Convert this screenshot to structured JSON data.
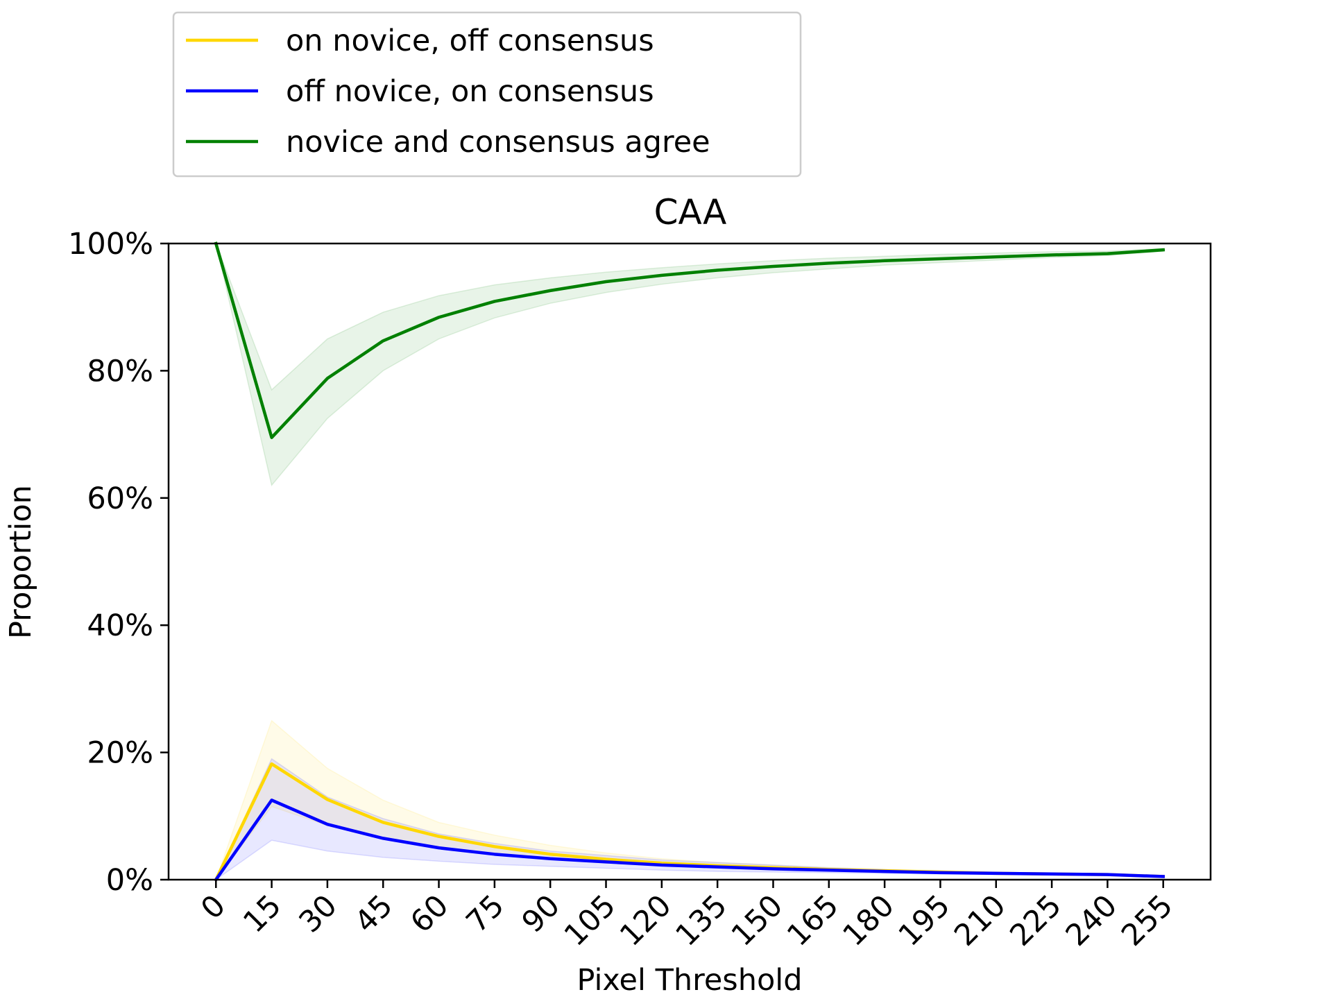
{
  "chart_data": {
    "type": "line",
    "title": "CAA",
    "xlabel": "Pixel Threshold",
    "ylabel": "Proportion",
    "x": [
      0,
      15,
      30,
      45,
      60,
      75,
      90,
      105,
      120,
      135,
      150,
      165,
      180,
      195,
      210,
      225,
      240,
      255
    ],
    "xlim": [
      -12.75,
      267.75
    ],
    "ylim": [
      0,
      100
    ],
    "ytick_values": [
      0,
      20,
      40,
      60,
      80,
      100
    ],
    "ytick_labels": [
      "0%",
      "20%",
      "40%",
      "60%",
      "80%",
      "100%"
    ],
    "xtick_labels": [
      "0",
      "15",
      "30",
      "45",
      "60",
      "75",
      "90",
      "105",
      "120",
      "135",
      "150",
      "165",
      "180",
      "195",
      "210",
      "225",
      "240",
      "255"
    ],
    "legend_position": "above-left",
    "grid": false,
    "series": [
      {
        "name": "on novice, off consensus",
        "color": "#FFD700",
        "values": [
          0,
          18.2,
          12.6,
          9.0,
          6.8,
          5.2,
          4.0,
          3.2,
          2.6,
          2.2,
          1.9,
          1.6,
          1.4,
          1.2,
          1.0,
          0.9,
          0.8,
          0.5
        ],
        "band_low": [
          0,
          11.5,
          8.5,
          6.5,
          5.0,
          4.0,
          3.2,
          2.6,
          2.2,
          1.9,
          1.6,
          1.4,
          1.2,
          1.0,
          0.9,
          0.8,
          0.7,
          0.4
        ],
        "band_high": [
          0,
          25.0,
          17.5,
          12.5,
          9.0,
          7.0,
          5.4,
          4.2,
          3.3,
          2.7,
          2.3,
          1.9,
          1.6,
          1.4,
          1.2,
          1.0,
          0.9,
          0.6
        ]
      },
      {
        "name": "off novice, on consensus",
        "color": "#0000FF",
        "values": [
          0,
          12.5,
          8.7,
          6.5,
          5.0,
          4.0,
          3.3,
          2.8,
          2.3,
          2.0,
          1.7,
          1.5,
          1.3,
          1.1,
          1.0,
          0.9,
          0.8,
          0.5
        ],
        "band_low": [
          0,
          6.2,
          4.5,
          3.5,
          2.9,
          2.4,
          2.1,
          1.8,
          1.5,
          1.3,
          1.2,
          1.1,
          1.0,
          0.9,
          0.8,
          0.7,
          0.6,
          0.4
        ],
        "band_high": [
          0,
          19.0,
          13.0,
          9.6,
          7.2,
          5.7,
          4.5,
          3.8,
          3.1,
          2.7,
          2.3,
          1.9,
          1.6,
          1.3,
          1.2,
          1.0,
          0.9,
          0.6
        ]
      },
      {
        "name": "novice and consensus agree",
        "color": "#008000",
        "values": [
          100,
          69.5,
          78.8,
          84.7,
          88.4,
          90.9,
          92.6,
          94.0,
          95.0,
          95.8,
          96.4,
          96.9,
          97.3,
          97.6,
          97.9,
          98.2,
          98.4,
          99.0
        ],
        "band_low": [
          100,
          62.0,
          72.5,
          80.0,
          85.0,
          88.3,
          90.6,
          92.3,
          93.6,
          94.6,
          95.4,
          96.0,
          96.6,
          97.0,
          97.4,
          97.8,
          98.1,
          98.8
        ],
        "band_high": [
          100,
          77.0,
          85.0,
          89.2,
          91.8,
          93.5,
          94.6,
          95.5,
          96.2,
          96.8,
          97.3,
          97.7,
          98.0,
          98.3,
          98.5,
          98.7,
          98.8,
          99.2
        ]
      }
    ]
  }
}
